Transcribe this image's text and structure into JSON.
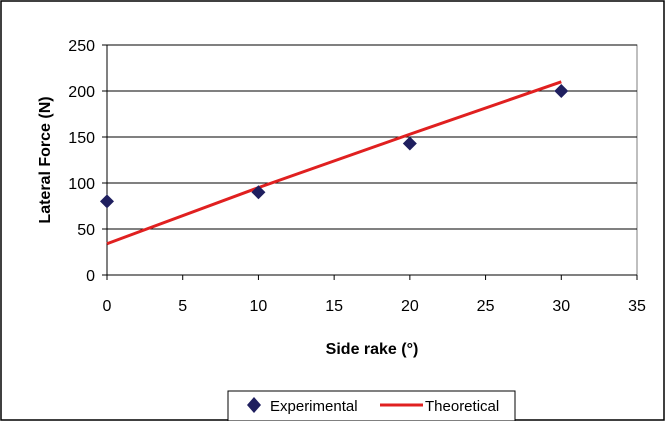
{
  "chart_data": {
    "type": "scatter",
    "title": "",
    "xlabel": "Side rake (°)",
    "ylabel": "Lateral Force (N)",
    "xlim": [
      0,
      35
    ],
    "ylim": [
      0,
      250
    ],
    "x_ticks": [
      "0",
      "5",
      "10",
      "15",
      "20",
      "25",
      "30",
      "35"
    ],
    "y_ticks": [
      "0",
      "50",
      "100",
      "150",
      "200",
      "250"
    ],
    "grid": "horizontal",
    "legend_position": "bottom",
    "series": [
      {
        "name": "Experimental",
        "kind": "scatter",
        "marker": "diamond",
        "color": "#1f1f5f",
        "points": [
          {
            "x": 0,
            "y": 80
          },
          {
            "x": 10,
            "y": 90
          },
          {
            "x": 20,
            "y": 143
          },
          {
            "x": 30,
            "y": 200
          }
        ]
      },
      {
        "name": "Theoretical",
        "kind": "line",
        "color": "#e02020",
        "points": [
          {
            "x": 0,
            "y": 34
          },
          {
            "x": 10,
            "y": 95
          },
          {
            "x": 20,
            "y": 153
          },
          {
            "x": 30,
            "y": 210
          }
        ]
      }
    ]
  }
}
